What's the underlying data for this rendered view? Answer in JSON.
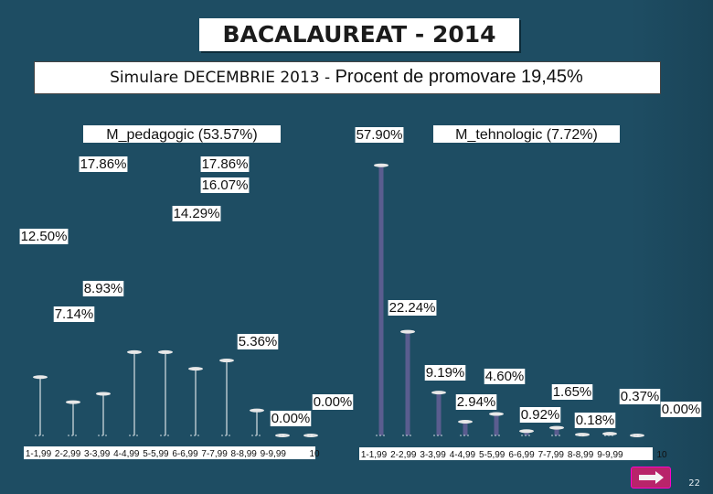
{
  "header": {
    "title": "BACALAUREAT - 2014",
    "subtitle_part1": "Simulare DECEMBRIE 2013 - ",
    "subtitle_part2": "Procent de promovare 19,45%"
  },
  "footer": {
    "page_number": "22",
    "next_icon": "arrow-right-icon"
  },
  "colors": {
    "background": "#1e4d63",
    "stem_left": "#ffffff",
    "stem_right": "#5a5d8f",
    "marker": "#e8e8e8",
    "label_bg": "#ffffff"
  },
  "chart_data": [
    {
      "type": "bar",
      "title": "M_pedagogic (53.57%)",
      "categories": [
        "1-1,99",
        "2-2,99",
        "3-3,99",
        "4-4,99",
        "5-5,99",
        "6-6,99",
        "7-7,99",
        "8-8,99",
        "9-9,99",
        "10"
      ],
      "values": [
        12.5,
        7.14,
        17.86,
        8.93,
        17.86,
        14.29,
        16.07,
        5.36,
        0.0,
        0.0
      ],
      "labels": [
        "12.50%",
        "7.14%",
        "17.86%",
        "8.93%",
        "17.86%",
        "14.29%",
        "16.07%",
        "5.36%",
        "0.00%",
        "0.00%"
      ],
      "ylim": [
        0,
        60
      ]
    },
    {
      "type": "bar",
      "title": "M_tehnologic (7.72%)",
      "categories": [
        "1-1,99",
        "2-2,99",
        "3-3,99",
        "4-4,99",
        "5-5,99",
        "6-6,99",
        "7-7,99",
        "8-8,99",
        "9-9,99",
        "10"
      ],
      "values": [
        57.9,
        22.24,
        9.19,
        2.94,
        4.6,
        0.92,
        1.65,
        0.18,
        0.37,
        0.0
      ],
      "labels": [
        "57.90%",
        "22.24%",
        "9.19%",
        "2.94%",
        "4.60%",
        "0.92%",
        "1.65%",
        "0.18%",
        "0.37%",
        "0.00%"
      ],
      "ylim": [
        0,
        60
      ]
    }
  ]
}
